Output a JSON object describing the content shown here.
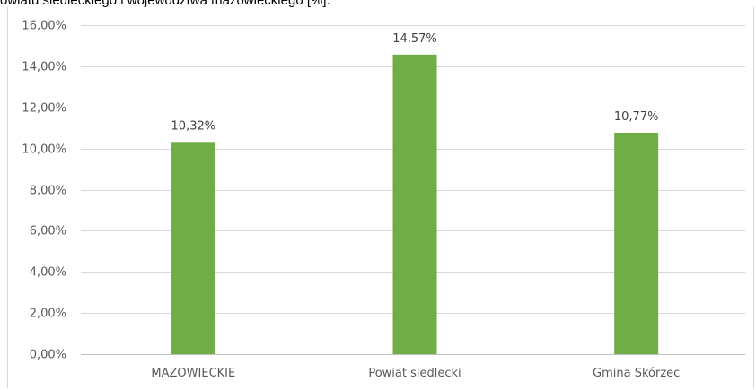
{
  "caption": "owiatu siedleckiego i województwa mazowieckiego [%].",
  "chart_data": {
    "type": "bar",
    "title": "",
    "xlabel": "",
    "ylabel": "",
    "categories": [
      "MAZOWIECKIE",
      "Powiat siedlecki",
      "Gmina Skórzec"
    ],
    "values": [
      10.32,
      14.57,
      10.77
    ],
    "data_labels": [
      "10,32%",
      "14,57%",
      "10,77%"
    ],
    "ylim": [
      0,
      16
    ],
    "y_ticks": [
      0,
      2,
      4,
      6,
      8,
      10,
      12,
      14,
      16
    ],
    "y_tick_labels": [
      "0,00%",
      "2,00%",
      "4,00%",
      "6,00%",
      "8,00%",
      "10,00%",
      "12,00%",
      "14,00%",
      "16,00%"
    ],
    "grid": true,
    "legend": "none",
    "bar_color": "#70ad47",
    "grid_color": "#d9d9d9",
    "axis_color": "#bfbfbf"
  }
}
